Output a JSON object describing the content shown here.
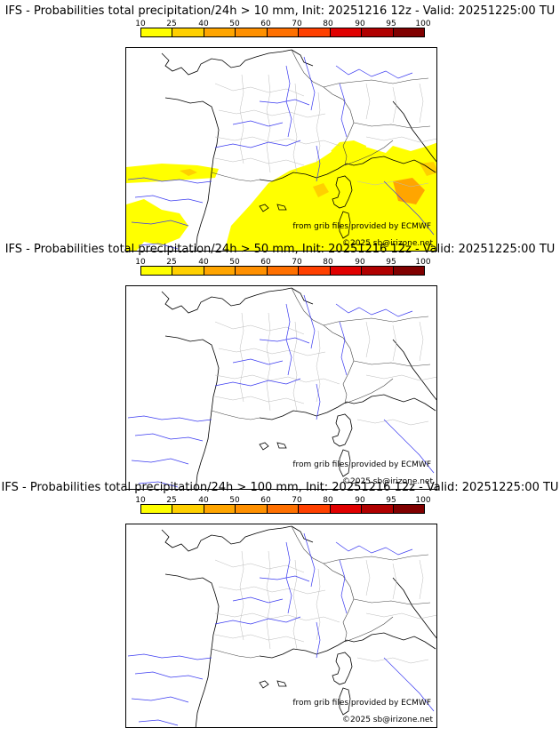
{
  "colorbar": {
    "ticks": [
      "10",
      "25",
      "40",
      "50",
      "60",
      "70",
      "80",
      "90",
      "95",
      "100"
    ],
    "colors": [
      "#ffff00",
      "#ffd000",
      "#ffa500",
      "#ff9000",
      "#ff7000",
      "#ff4000",
      "#e00000",
      "#b00000",
      "#800000"
    ]
  },
  "panels": [
    {
      "title": "IFS - Probabilities total precipitation/24h > 10 mm, Init: 20251216 12z - Valid: 20251225:00 TU",
      "credit_source": "from grib files provided by ECMWF",
      "credit_copyright": "©2025 sb@irizone.net",
      "has_precip": true
    },
    {
      "title": "IFS - Probabilities total precipitation/24h > 50 mm, Init: 20251216 12z - Valid: 20251225:00 TU",
      "credit_source": "from grib files provided by ECMWF",
      "credit_copyright": "©2025 sb@irizone.net",
      "has_precip": false
    },
    {
      "title": "IFS - Probabilities total precipitation/24h > 100 mm, Init: 20251216 12z - Valid: 20251225:00 TU",
      "credit_source": "from grib files provided by ECMWF",
      "credit_copyright": "©2025 sb@irizone.net",
      "has_precip": false
    }
  ]
}
